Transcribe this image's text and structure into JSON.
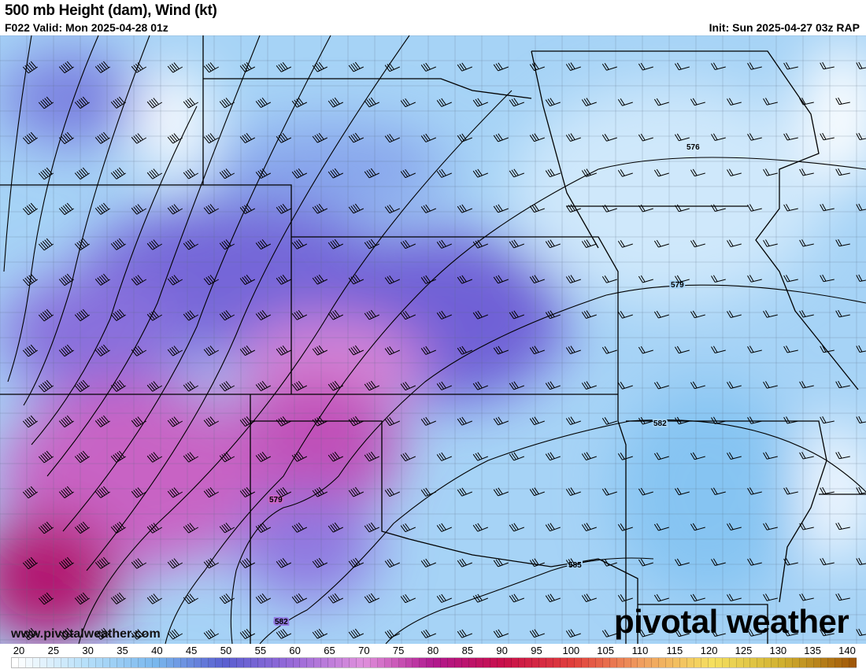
{
  "header": {
    "title": "500 mb Height (dam), Wind (kt)",
    "valid": "F022 Valid: Mon 2025-04-28 01z",
    "init": "Init: Sun 2025-04-27 03z RAP"
  },
  "map": {
    "contour_labels": [
      "576",
      "579",
      "579",
      "582",
      "582",
      "585"
    ],
    "watermark_url": "www.pivotalweather.com",
    "logo": "pivotal weather"
  },
  "colorbar": {
    "ticks": [
      "20",
      "25",
      "30",
      "35",
      "40",
      "45",
      "50",
      "55",
      "60",
      "65",
      "70",
      "75",
      "80",
      "85",
      "90",
      "95",
      "100",
      "105",
      "110",
      "115",
      "120",
      "125",
      "130",
      "135",
      "140"
    ],
    "color_stops": [
      "#ffffff",
      "#b8e0fa",
      "#7ab8ee",
      "#5a5fd0",
      "#9a6ad8",
      "#e090dc",
      "#b0188e",
      "#c8104a",
      "#e0403c",
      "#f0a060",
      "#f5e060",
      "#d0b030",
      "#a05808"
    ]
  }
}
